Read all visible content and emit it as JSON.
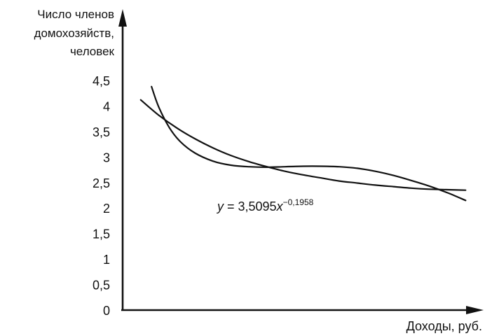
{
  "chart_data": {
    "type": "line",
    "ylabel": [
      "Число членов",
      "домохозяйств,",
      "человек"
    ],
    "xlabel": "Доходы, руб.",
    "ylim": [
      0,
      4.5
    ],
    "yticks": [
      "0",
      "0,5",
      "1",
      "1,5",
      "2",
      "2,5",
      "3",
      "3,5",
      "4",
      "4,5"
    ],
    "yticks_values": [
      0,
      0.5,
      1,
      1.5,
      2,
      2.5,
      3,
      3.5,
      4,
      4.5
    ],
    "equation": {
      "lhs": "y",
      "eq": " = 3,5095",
      "var": "x",
      "exp": "−0,1958"
    },
    "grid": false,
    "series": [
      {
        "x": [
          0.05,
          0.1,
          0.15,
          0.2,
          0.25,
          0.3,
          0.35,
          0.4,
          0.45,
          0.5,
          0.55,
          0.6,
          0.65,
          0.7,
          0.75,
          0.8,
          0.85,
          0.9,
          0.95
        ],
        "values": [
          4.12,
          3.82,
          3.57,
          3.36,
          3.18,
          3.03,
          2.91,
          2.81,
          2.72,
          2.65,
          2.59,
          2.53,
          2.49,
          2.45,
          2.42,
          2.39,
          2.37,
          2.36,
          2.35
        ]
      },
      {
        "x": [
          0.08,
          0.1,
          0.13,
          0.16,
          0.2,
          0.25,
          0.3,
          0.35,
          0.4,
          0.45,
          0.5,
          0.55,
          0.6,
          0.65,
          0.7,
          0.75,
          0.8,
          0.85,
          0.9,
          0.95
        ],
        "values": [
          4.38,
          3.98,
          3.57,
          3.3,
          3.08,
          2.92,
          2.84,
          2.81,
          2.8,
          2.81,
          2.82,
          2.82,
          2.81,
          2.78,
          2.72,
          2.64,
          2.54,
          2.43,
          2.3,
          2.15
        ]
      }
    ]
  }
}
